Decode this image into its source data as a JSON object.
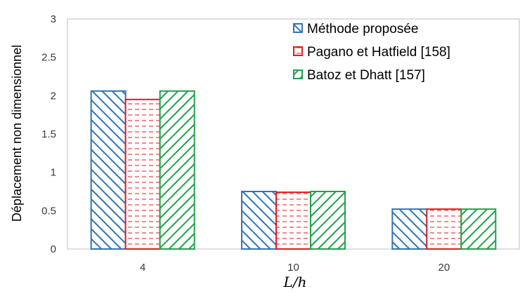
{
  "chart_data": {
    "type": "bar",
    "categories": [
      "4",
      "10",
      "20"
    ],
    "series": [
      {
        "name": "Méthode proposée",
        "values": [
          2.06,
          0.75,
          0.52
        ],
        "color": "#2E75B6",
        "pattern": "backslash-hatch"
      },
      {
        "name": "Pagano et Hatfield [158]",
        "values": [
          1.95,
          0.74,
          0.52
        ],
        "color": "#E31A1C",
        "pattern": "horizontal-dashes"
      },
      {
        "name": "Batoz et Dhatt [157]",
        "values": [
          2.06,
          0.75,
          0.52
        ],
        "color": "#1FA24A",
        "pattern": "slash-hatch"
      }
    ],
    "xlabel": "L/h",
    "ylabel": "Déplacement non dimensionnel",
    "ylim": [
      0,
      3
    ],
    "yticks": [
      "0",
      "0.5",
      "1",
      "1.5",
      "2",
      "2.5",
      "3"
    ],
    "grid": false,
    "legend_position": "top-right"
  }
}
